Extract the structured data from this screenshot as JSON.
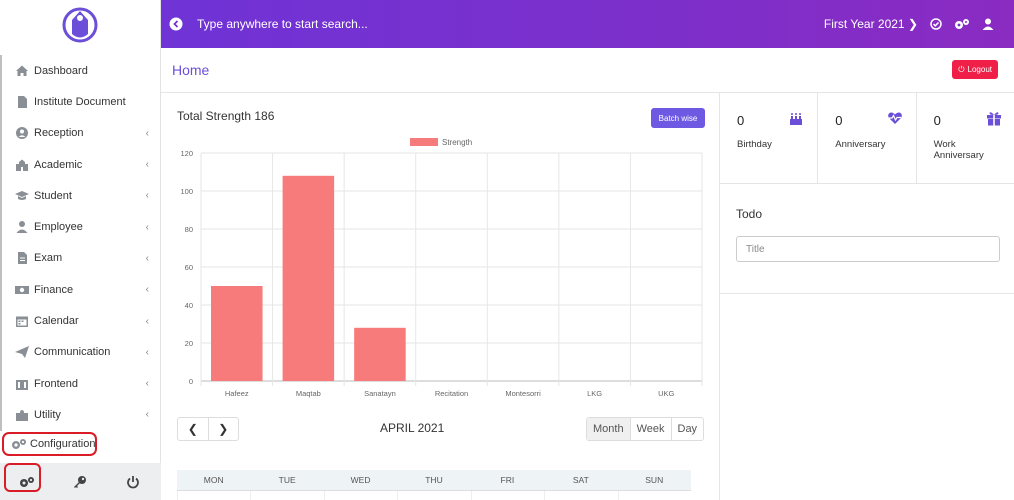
{
  "sidebar": {
    "items": [
      {
        "label": "Dashboard",
        "icon": "home-icon",
        "chevron": ""
      },
      {
        "label": "Institute Document",
        "icon": "document-icon",
        "chevron": ""
      },
      {
        "label": "Reception",
        "icon": "user-circle-icon",
        "chevron": "‹"
      },
      {
        "label": "Academic",
        "icon": "school-icon",
        "chevron": "‹"
      },
      {
        "label": "Student",
        "icon": "graduation-cap-icon",
        "chevron": "‹"
      },
      {
        "label": "Employee",
        "icon": "user-icon",
        "chevron": "‹"
      },
      {
        "label": "Exam",
        "icon": "file-icon",
        "chevron": "‹"
      },
      {
        "label": "Finance",
        "icon": "money-icon",
        "chevron": "‹"
      },
      {
        "label": "Calendar",
        "icon": "calendar-icon",
        "chevron": "‹"
      },
      {
        "label": "Communication",
        "icon": "paper-plane-icon",
        "chevron": "‹"
      },
      {
        "label": "Frontend",
        "icon": "building-icon",
        "chevron": "‹"
      },
      {
        "label": "Utility",
        "icon": "puzzle-icon",
        "chevron": "‹"
      }
    ],
    "configuration_label": "Configuration"
  },
  "topbar": {
    "search_placeholder": "Type anywhere to start search...",
    "year_selector": "First Year 2021"
  },
  "home": {
    "title": "Home",
    "logout_label": "Logout"
  },
  "chart_card": {
    "title": "Total Strength 186",
    "batch_button": "Batch wise"
  },
  "chart_data": {
    "type": "bar",
    "categories": [
      "Hafeez",
      "Maqtab",
      "Sanatayn",
      "Recitation",
      "Montesorri",
      "LKG",
      "UKG"
    ],
    "series": [
      {
        "name": "Strength",
        "values": [
          50,
          108,
          28,
          0,
          0,
          0,
          0
        ],
        "color": "#f77b7b"
      }
    ],
    "ylim": [
      0,
      120
    ],
    "yticks": [
      0,
      20,
      40,
      60,
      80,
      100,
      120
    ],
    "legend_position": "top-center",
    "grid": true
  },
  "calendar": {
    "month_label": "APRIL 2021",
    "views": [
      "Month",
      "Week",
      "Day"
    ],
    "days": [
      "MON",
      "TUE",
      "WED",
      "THU",
      "FRI",
      "SAT",
      "SUN"
    ]
  },
  "stats": [
    {
      "value": "0",
      "label": "Birthday",
      "icon": "birthday-cake-icon"
    },
    {
      "value": "0",
      "label": "Anniversary",
      "icon": "heartbeat-icon"
    },
    {
      "value": "0",
      "label": "Work Anniversary",
      "icon": "gift-icon"
    }
  ],
  "todo": {
    "title": "Todo",
    "input_placeholder": "Title"
  },
  "colors": {
    "accent": "#6c4fd8",
    "topbar_start": "#6f33d6",
    "topbar_end": "#8a2bc2",
    "logout": "#ef1f47",
    "bar": "#f77b7b"
  }
}
